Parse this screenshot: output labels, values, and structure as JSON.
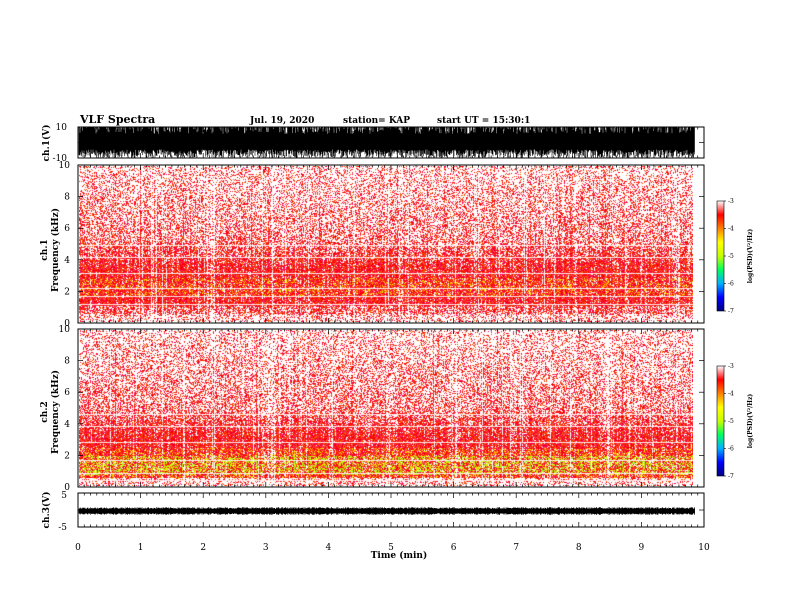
{
  "header": {
    "title": "VLF Spectra",
    "date": "Jul. 19, 2020",
    "station": "station= KAP",
    "start": "start UT = 15:30:1"
  },
  "chart_data": [
    {
      "type": "line",
      "name": "ch1-waveform",
      "ylabel": "ch.1(V)",
      "ylim": [
        -10,
        10
      ],
      "yticks": [
        "10",
        "-10"
      ],
      "xlim": [
        0,
        10
      ],
      "x_end": 9.85,
      "color": "#000000"
    },
    {
      "type": "heatmap",
      "name": "ch1-spectrogram",
      "ylabel": "ch.1\nFrequency (kHz)",
      "ylim": [
        0,
        10
      ],
      "yticks": [
        "0",
        "2",
        "4",
        "6",
        "8",
        "10"
      ],
      "xlim": [
        0,
        10
      ],
      "x_end": 9.85,
      "band_khz": [
        1.0,
        3.3
      ],
      "hot_band_khz": [
        1.6,
        2.8
      ],
      "colorbar": {
        "label": "log(PSD)(V²/Hz)",
        "ticks": [
          "-3",
          "-4",
          "-5",
          "-6",
          "-7"
        ],
        "range": [
          -7,
          -3
        ],
        "colors": [
          "#000080",
          "#0000ff",
          "#00b0ff",
          "#00ff60",
          "#c8ff00",
          "#ffff00",
          "#ff8000",
          "#ff0000",
          "#ffffff"
        ]
      }
    },
    {
      "type": "heatmap",
      "name": "ch2-spectrogram",
      "ylabel": "ch.2\nFrequency (kHz)",
      "ylim": [
        0,
        10
      ],
      "yticks": [
        "0",
        "2",
        "4",
        "6",
        "8",
        "10"
      ],
      "xlim": [
        0,
        10
      ],
      "x_end": 9.85,
      "band_khz": [
        0.2,
        3.0
      ],
      "hot_band_khz": [
        0.4,
        2.4
      ],
      "green_band_khz": [
        0.7,
        1.9
      ],
      "colorbar": {
        "label": "log(PSD)(V²/Hz)",
        "ticks": [
          "-3",
          "-4",
          "-5",
          "-6",
          "-7"
        ],
        "range": [
          -7,
          -3
        ],
        "colors": [
          "#000080",
          "#0000ff",
          "#00b0ff",
          "#00ff60",
          "#c8ff00",
          "#ffff00",
          "#ff8000",
          "#ff0000",
          "#ffffff"
        ]
      }
    },
    {
      "type": "line",
      "name": "ch3-waveform",
      "ylabel": "ch.3(V)",
      "ylim": [
        -5,
        5
      ],
      "yticks": [
        "5",
        "-5"
      ],
      "trace_level_v": -0.3,
      "xlim": [
        0,
        10
      ],
      "x_end": 9.85,
      "xlabel": "Time (min)",
      "xticks": [
        "0",
        "1",
        "2",
        "3",
        "4",
        "5",
        "6",
        "7",
        "8",
        "9",
        "10"
      ],
      "color": "#000000"
    }
  ]
}
